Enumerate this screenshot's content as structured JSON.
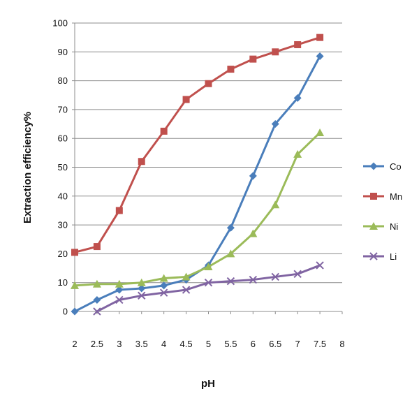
{
  "chart_data": {
    "type": "line",
    "title": "",
    "xlabel": "pH",
    "ylabel": "Extraction  efficiency%",
    "xlim": [
      2,
      8
    ],
    "ylim": [
      0,
      100
    ],
    "x_ticks": [
      "2",
      "2.5",
      "3",
      "3.5",
      "4",
      "4.5",
      "5",
      "5.5",
      "6",
      "6.5",
      "7",
      "7.5",
      "8"
    ],
    "y_ticks": [
      "0",
      "10",
      "20",
      "30",
      "40",
      "50",
      "60",
      "70",
      "80",
      "90",
      "100"
    ],
    "x_tick_values": [
      2,
      2.5,
      3,
      3.5,
      4,
      4.5,
      5,
      5.5,
      6,
      6.5,
      7,
      7.5,
      8
    ],
    "y_tick_values": [
      0,
      10,
      20,
      30,
      40,
      50,
      60,
      70,
      80,
      90,
      100
    ],
    "grid": "horizontal",
    "legend_position": "right",
    "x": [
      2,
      2.5,
      3,
      3.5,
      4,
      4.5,
      5,
      5.5,
      6,
      6.5,
      7,
      7.5
    ],
    "series": [
      {
        "name": "Co",
        "color": "#4a7ebb",
        "marker": "diamond",
        "values": [
          0,
          4,
          7.5,
          8,
          9,
          11,
          16,
          29,
          47,
          65,
          74,
          88.5
        ]
      },
      {
        "name": "Mn",
        "color": "#c0504d",
        "marker": "square",
        "values": [
          20.5,
          22.5,
          35,
          52,
          62.5,
          73.5,
          79,
          84,
          87.5,
          90,
          92.5,
          95
        ]
      },
      {
        "name": "Ni",
        "color": "#9bbb59",
        "marker": "triangle",
        "values": [
          9,
          9.5,
          9.5,
          10,
          11.5,
          12,
          15.5,
          20,
          27,
          37,
          54.5,
          62
        ]
      },
      {
        "name": "Li",
        "color": "#8064a2",
        "marker": "x",
        "values": [
          null,
          0,
          4,
          5.5,
          6.5,
          7.5,
          10,
          10.5,
          11,
          12,
          13,
          16
        ]
      }
    ]
  }
}
